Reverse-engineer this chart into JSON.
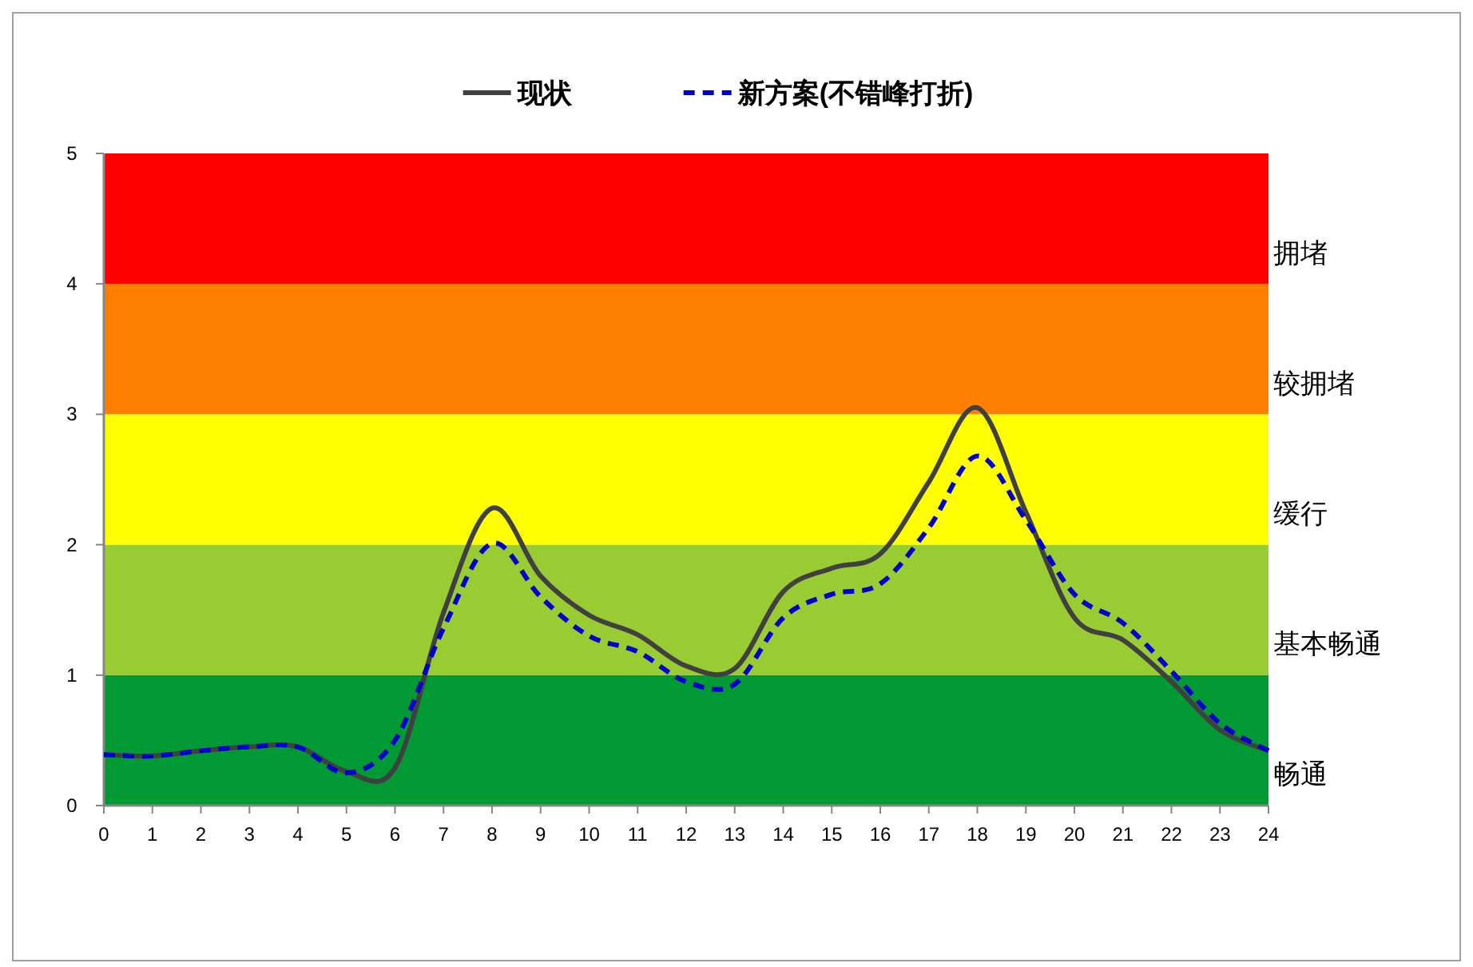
{
  "chart_data": {
    "type": "line",
    "x": [
      0,
      1,
      2,
      3,
      4,
      5,
      6,
      7,
      8,
      9,
      10,
      11,
      12,
      13,
      14,
      15,
      16,
      17,
      18,
      19,
      20,
      21,
      22,
      23,
      24
    ],
    "series": [
      {
        "name": "现状",
        "color": "#404040",
        "line_style": "solid",
        "values": [
          0.39,
          0.38,
          0.42,
          0.45,
          0.45,
          0.26,
          0.29,
          1.48,
          2.28,
          1.76,
          1.46,
          1.31,
          1.07,
          1.05,
          1.64,
          1.82,
          1.93,
          2.48,
          3.05,
          2.25,
          1.44,
          1.27,
          0.95,
          0.58,
          0.42
        ]
      },
      {
        "name": "新方案(不错峰打折)",
        "color": "#0000cc",
        "line_style": "dashed",
        "values": [
          0.39,
          0.38,
          0.42,
          0.45,
          0.45,
          0.25,
          0.5,
          1.36,
          2.01,
          1.6,
          1.3,
          1.18,
          0.95,
          0.93,
          1.44,
          1.62,
          1.7,
          2.13,
          2.68,
          2.19,
          1.62,
          1.4,
          1.03,
          0.63,
          0.42
        ]
      }
    ],
    "xlim": [
      0,
      24
    ],
    "xticks": [
      0,
      1,
      2,
      3,
      4,
      5,
      6,
      7,
      8,
      9,
      10,
      11,
      12,
      13,
      14,
      15,
      16,
      17,
      18,
      19,
      20,
      21,
      22,
      23,
      24
    ],
    "ylim": [
      0,
      5
    ],
    "yticks": [
      0,
      1,
      2,
      3,
      4,
      5
    ],
    "bands": [
      {
        "axis": "y",
        "from": 0,
        "to": 1,
        "label": "畅通",
        "color": "#009933"
      },
      {
        "axis": "y",
        "from": 1,
        "to": 2,
        "label": "基本畅通",
        "color": "#99cc33"
      },
      {
        "axis": "y",
        "from": 2,
        "to": 3,
        "label": "缓行",
        "color": "#ffff00"
      },
      {
        "axis": "y",
        "from": 3,
        "to": 4,
        "label": "较拥堵",
        "color": "#ff8000"
      },
      {
        "axis": "y",
        "from": 4,
        "to": 5,
        "label": "拥堵",
        "color": "#ff0000"
      }
    ],
    "legend": "top",
    "grid": false,
    "marker": "none"
  }
}
